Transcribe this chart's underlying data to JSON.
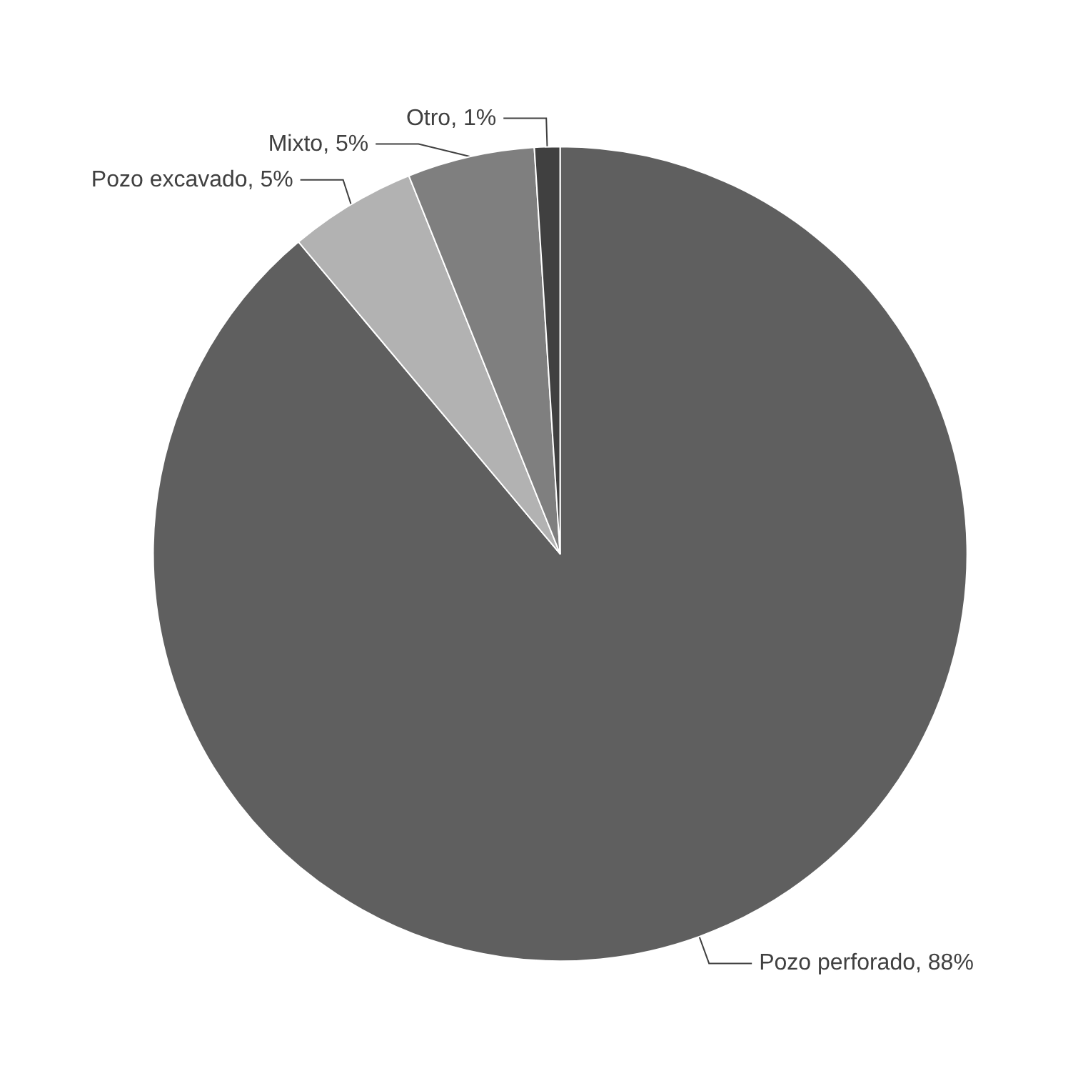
{
  "chart_data": {
    "type": "pie",
    "categories": [
      "Pozo perforado",
      "Pozo excavado",
      "Mixto",
      "Otro"
    ],
    "values": [
      88,
      5,
      5,
      1
    ],
    "value_labels": [
      "88%",
      "5%",
      "5%",
      "1%"
    ],
    "colors": [
      "#5f5f5f",
      "#b2b2b2",
      "#7f7f7f",
      "#404040"
    ],
    "legend": false
  }
}
